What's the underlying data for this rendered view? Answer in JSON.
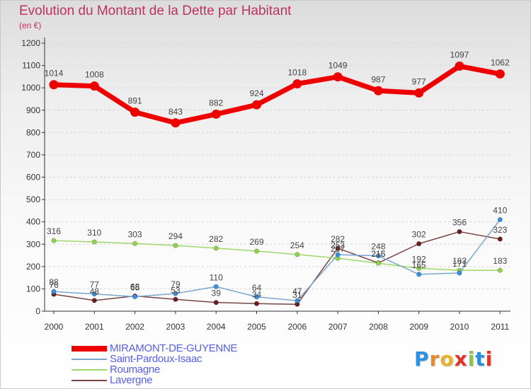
{
  "header": {
    "title": "Evolution du Montant de la Dette par Habitant",
    "unit": "(en €)"
  },
  "colors": {
    "title": "#c1335f",
    "axis": "#333333",
    "grid": "#d6d6d6",
    "label": "#444444",
    "legend_text": "#5560e8"
  },
  "logo": {
    "letters": [
      "P",
      "r",
      "o",
      "x",
      "i",
      "t",
      "i"
    ],
    "colors": [
      "#2c8fe0",
      "#e8892a",
      "#e8b22a",
      "#e0342c",
      "#8cc63f",
      "#2c8fe0",
      "#e0342c"
    ]
  },
  "chart_data": {
    "type": "line",
    "title": "Evolution du Montant de la Dette par Habitant",
    "ylabel": "(en €)",
    "xlabel": "",
    "x": [
      "2000",
      "2001",
      "2002",
      "2003",
      "2004",
      "2005",
      "2006",
      "2007",
      "2008",
      "2009",
      "2010",
      "2011"
    ],
    "ylim": [
      0,
      1200
    ],
    "yticks": [
      0,
      100,
      200,
      300,
      400,
      500,
      600,
      700,
      800,
      900,
      1000,
      1100,
      1200
    ],
    "grid": "dashed horizontal",
    "legend_position": "bottom-left",
    "series": [
      {
        "name": "MIRAMONT-DE-GUYENNE",
        "color": "#ee0000",
        "marker_color": "#ee0000",
        "width": 7,
        "values": [
          1014,
          1008,
          891,
          843,
          882,
          924,
          1018,
          1049,
          987,
          977,
          1097,
          1062
        ]
      },
      {
        "name": "Saint-Pardoux-Isaac",
        "color": "#7aa7cf",
        "marker_color": "#3b8ed8",
        "width": 1.5,
        "values": [
          88,
          77,
          65,
          79,
          110,
          64,
          47,
          253,
          248,
          165,
          171,
          410
        ],
        "labels": [
          "88",
          "77",
          "65",
          "79",
          "110",
          "64",
          "47",
          "253",
          "248",
          "165",
          "171",
          "410"
        ]
      },
      {
        "name": "Roumagne",
        "color": "#9ed86c",
        "marker_color": "#8fd14f",
        "width": 1.5,
        "values": [
          316,
          310,
          303,
          294,
          282,
          269,
          254,
          237,
          215,
          192,
          183,
          183
        ],
        "labels": [
          "316",
          "310",
          "303",
          "294",
          "282",
          "269",
          "254",
          "237",
          "215",
          "192",
          "183",
          "183"
        ]
      },
      {
        "name": "Lavergne",
        "color": "#7a4444",
        "marker_color": "#6b1f1f",
        "width": 1.5,
        "values": [
          76,
          48,
          68,
          53,
          39,
          34,
          31,
          282,
          216,
          302,
          356,
          323
        ],
        "labels": [
          "76",
          "48",
          "68",
          "53",
          "39",
          "34",
          "31",
          "282",
          "216",
          "302",
          "356",
          "323"
        ]
      }
    ]
  }
}
